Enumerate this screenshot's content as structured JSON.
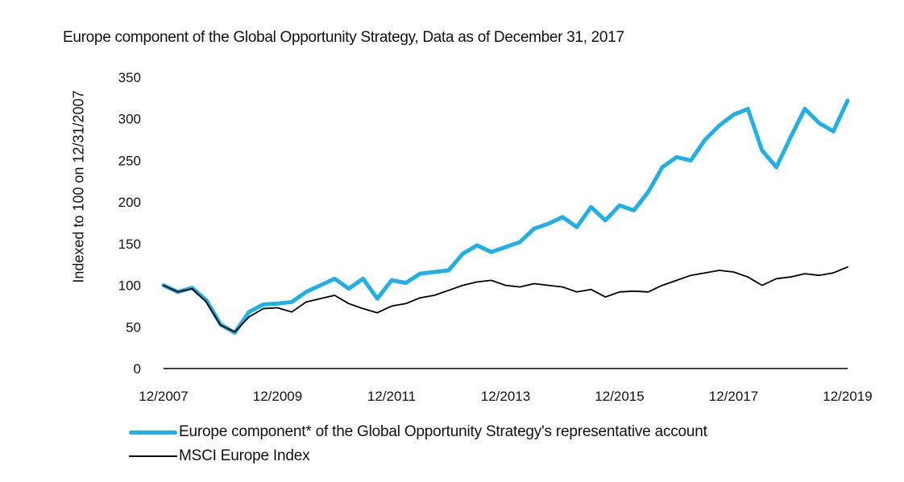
{
  "chart_data": {
    "type": "line",
    "title": "Europe component of the Global Opportunity Strategy, Data as of December 31, 2017",
    "xlabel": "",
    "ylabel": "Indexed to 100 on 12/31/2007",
    "ylim": [
      0,
      350
    ],
    "yticks": [
      "0",
      "50",
      "100",
      "150",
      "200",
      "250",
      "300",
      "350"
    ],
    "yticks_values": [
      0,
      50,
      100,
      150,
      200,
      250,
      300,
      350
    ],
    "xlim": [
      2007.92,
      2019.92
    ],
    "xticks": [
      "12/2007",
      "12/2009",
      "12/2011",
      "12/2013",
      "12/2015",
      "12/2017",
      "12/2019"
    ],
    "xticks_values": [
      2007.92,
      2009.92,
      2011.92,
      2013.92,
      2015.92,
      2017.92,
      2019.92
    ],
    "grid": false,
    "legend_position": "bottom-left",
    "x": [
      2007.92,
      2008.17,
      2008.42,
      2008.67,
      2008.92,
      2009.17,
      2009.42,
      2009.67,
      2009.92,
      2010.17,
      2010.42,
      2010.67,
      2010.92,
      2011.17,
      2011.42,
      2011.67,
      2011.92,
      2012.17,
      2012.42,
      2012.67,
      2012.92,
      2013.17,
      2013.42,
      2013.67,
      2013.92,
      2014.17,
      2014.42,
      2014.67,
      2014.92,
      2015.17,
      2015.42,
      2015.67,
      2015.92,
      2016.17,
      2016.42,
      2016.67,
      2016.92,
      2017.17,
      2017.42,
      2017.67,
      2017.92,
      2018.17,
      2018.42,
      2018.67,
      2018.92,
      2019.17,
      2019.42,
      2019.67,
      2019.92
    ],
    "series": [
      {
        "name": "Europe component* of the Global Opportunity Strategy's representative account",
        "color": "#1fb0e8",
        "values": [
          100,
          92,
          97,
          82,
          53,
          43,
          68,
          77,
          78,
          80,
          92,
          100,
          108,
          96,
          108,
          84,
          106,
          103,
          114,
          116,
          118,
          138,
          148,
          140,
          146,
          152,
          168,
          174,
          182,
          170,
          194,
          178,
          196,
          190,
          212,
          242,
          254,
          250,
          275,
          292,
          305,
          312,
          262,
          242,
          278,
          312,
          295,
          285,
          322
        ]
      },
      {
        "name": "MSCI Europe Index",
        "color": "#000000",
        "values": [
          100,
          92,
          96,
          80,
          52,
          44,
          62,
          72,
          73,
          68,
          80,
          84,
          88,
          78,
          72,
          67,
          75,
          78,
          85,
          88,
          94,
          100,
          104,
          106,
          100,
          98,
          102,
          100,
          98,
          92,
          95,
          86,
          92,
          93,
          92,
          100,
          106,
          112,
          115,
          118,
          116,
          110,
          100,
          108,
          110,
          114,
          112,
          115,
          122
        ]
      }
    ]
  }
}
